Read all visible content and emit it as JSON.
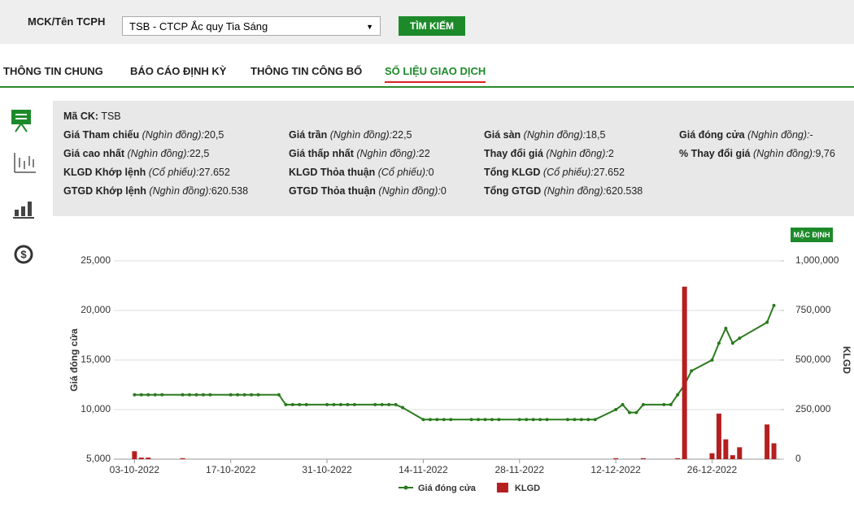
{
  "search": {
    "label": "MCK/Tên TCPH",
    "selected": "TSB - CTCP Ắc quy Tia Sáng",
    "button": "TÌM KIẾM"
  },
  "tabs": {
    "items": [
      "THÔNG TIN CHUNG",
      "BÁO CÁO ĐỊNH KỲ",
      "THÔNG TIN CÔNG BỐ",
      "SỐ LIỆU GIAO DỊCH"
    ],
    "active": 3
  },
  "info": {
    "code": {
      "label": "Mã CK:",
      "value": "TSB"
    },
    "rows": [
      [
        {
          "label": "Giá Tham chiếu",
          "unit": "(Nghìn đồng):",
          "value": "20,5"
        },
        {
          "label": "Giá trần",
          "unit": "(Nghìn đồng):",
          "value": "22,5"
        },
        {
          "label": "Giá sàn",
          "unit": "(Nghìn đồng):",
          "value": "18,5"
        },
        {
          "label": "Giá đóng cửa",
          "unit": "(Nghìn đồng):",
          "value": "-"
        }
      ],
      [
        {
          "label": "Giá cao nhất",
          "unit": "(Nghìn đồng):",
          "value": "22,5"
        },
        {
          "label": "Giá thấp nhất",
          "unit": "(Nghìn đồng):",
          "value": "22"
        },
        {
          "label": "Thay đổi giá",
          "unit": "(Nghìn đồng):",
          "value": "2"
        },
        {
          "label": "% Thay đổi giá",
          "unit": "(Nghìn đồng):",
          "value": "9,76"
        }
      ],
      [
        {
          "label": "KLGD Khớp lệnh",
          "unit": "(Cổ phiếu):",
          "value": "27.652"
        },
        {
          "label": "KLGD Thỏa thuận",
          "unit": "(Cổ phiếu):",
          "value": "0"
        },
        {
          "label": "Tổng KLGD",
          "unit": "(Cổ phiếu):",
          "value": "27.652"
        }
      ],
      [
        {
          "label": "GTGD Khớp lệnh",
          "unit": "(Nghìn đồng):",
          "value": "620.538"
        },
        {
          "label": "GTGD Thỏa thuận",
          "unit": "(Nghìn đồng):",
          "value": "0"
        },
        {
          "label": "Tổng GTGD",
          "unit": "(Nghìn đồng):",
          "value": "620.538"
        }
      ]
    ]
  },
  "reset_button": "MẶC ĐỊNH",
  "chart_data": {
    "type": "line-bar",
    "y_label": "Giá đóng cửa",
    "y2_label": "KLGD",
    "x": [
      "03-10-2022",
      "04-10-2022",
      "05-10-2022",
      "06-10-2022",
      "07-10-2022",
      "10-10-2022",
      "11-10-2022",
      "12-10-2022",
      "13-10-2022",
      "14-10-2022",
      "17-10-2022",
      "18-10-2022",
      "19-10-2022",
      "20-10-2022",
      "21-10-2022",
      "24-10-2022",
      "25-10-2022",
      "26-10-2022",
      "27-10-2022",
      "28-10-2022",
      "31-10-2022",
      "01-11-2022",
      "02-11-2022",
      "03-11-2022",
      "04-11-2022",
      "07-11-2022",
      "08-11-2022",
      "09-11-2022",
      "10-11-2022",
      "11-11-2022",
      "14-11-2022",
      "15-11-2022",
      "16-11-2022",
      "17-11-2022",
      "18-11-2022",
      "21-11-2022",
      "22-11-2022",
      "23-11-2022",
      "24-11-2022",
      "25-11-2022",
      "28-11-2022",
      "29-11-2022",
      "30-11-2022",
      "01-12-2022",
      "02-12-2022",
      "05-12-2022",
      "06-12-2022",
      "07-12-2022",
      "08-12-2022",
      "09-12-2022",
      "12-12-2022",
      "13-12-2022",
      "14-12-2022",
      "15-12-2022",
      "16-12-2022",
      "19-12-2022",
      "20-12-2022",
      "21-12-2022",
      "22-12-2022",
      "23-12-2022",
      "26-12-2022",
      "27-12-2022",
      "28-12-2022",
      "29-12-2022",
      "30-12-2022",
      "03-01-2023",
      "04-01-2023"
    ],
    "xlim": [
      "30-09-2022",
      "05-01-2023"
    ],
    "xticks": [
      "03-10-2022",
      "17-10-2022",
      "31-10-2022",
      "14-11-2022",
      "28-11-2022",
      "12-12-2022",
      "26-12-2022"
    ],
    "ylim": [
      5000,
      25000
    ],
    "yticks": [
      {
        "value": 5000,
        "label": "5,000"
      },
      {
        "value": 10000,
        "label": "10,000"
      },
      {
        "value": 15000,
        "label": "15,000"
      },
      {
        "value": 20000,
        "label": "20,000"
      },
      {
        "value": 25000,
        "label": "25,000"
      }
    ],
    "y2lim": [
      0,
      1000000
    ],
    "y2ticks": [
      0,
      {
        "value": 250000,
        "label": "250,000"
      },
      {
        "value": 500000,
        "label": "500,000"
      },
      {
        "value": 750000,
        "label": "750,000"
      },
      {
        "value": 1000000,
        "label": "1,000,000"
      }
    ],
    "grid": true,
    "series": [
      {
        "name": "Giá đóng cửa",
        "color": "#2a7a1e",
        "kind": "line",
        "values": [
          11500,
          11500,
          11500,
          11500,
          11500,
          11500,
          11500,
          11500,
          11500,
          11500,
          11500,
          11500,
          11500,
          11500,
          11500,
          11500,
          10500,
          10500,
          10500,
          10500,
          10500,
          10500,
          10500,
          10500,
          10500,
          10500,
          10500,
          10500,
          10500,
          10200,
          9000,
          9000,
          9000,
          9000,
          9000,
          9000,
          9000,
          9000,
          9000,
          9000,
          9000,
          9000,
          9000,
          9000,
          9000,
          9000,
          9000,
          9000,
          9000,
          9000,
          10000,
          10500,
          9700,
          9700,
          10500,
          10500,
          10500,
          11500,
          12500,
          13900,
          15000,
          16700,
          18200,
          16700,
          17200,
          18800,
          20500
        ]
      },
      {
        "name": "KLGD",
        "color": "#b51f1f",
        "kind": "bar",
        "axis": "y2",
        "values": [
          40000,
          8000,
          8000,
          0,
          0,
          5000,
          0,
          0,
          0,
          0,
          0,
          0,
          0,
          0,
          0,
          0,
          0,
          0,
          0,
          0,
          0,
          0,
          0,
          0,
          0,
          0,
          0,
          0,
          0,
          0,
          0,
          0,
          0,
          0,
          0,
          0,
          0,
          0,
          0,
          0,
          0,
          0,
          0,
          0,
          0,
          0,
          0,
          0,
          0,
          0,
          5000,
          0,
          0,
          0,
          5000,
          0,
          0,
          5000,
          870000,
          0,
          30000,
          230000,
          100000,
          20000,
          60000,
          175000,
          80000
        ]
      }
    ]
  }
}
